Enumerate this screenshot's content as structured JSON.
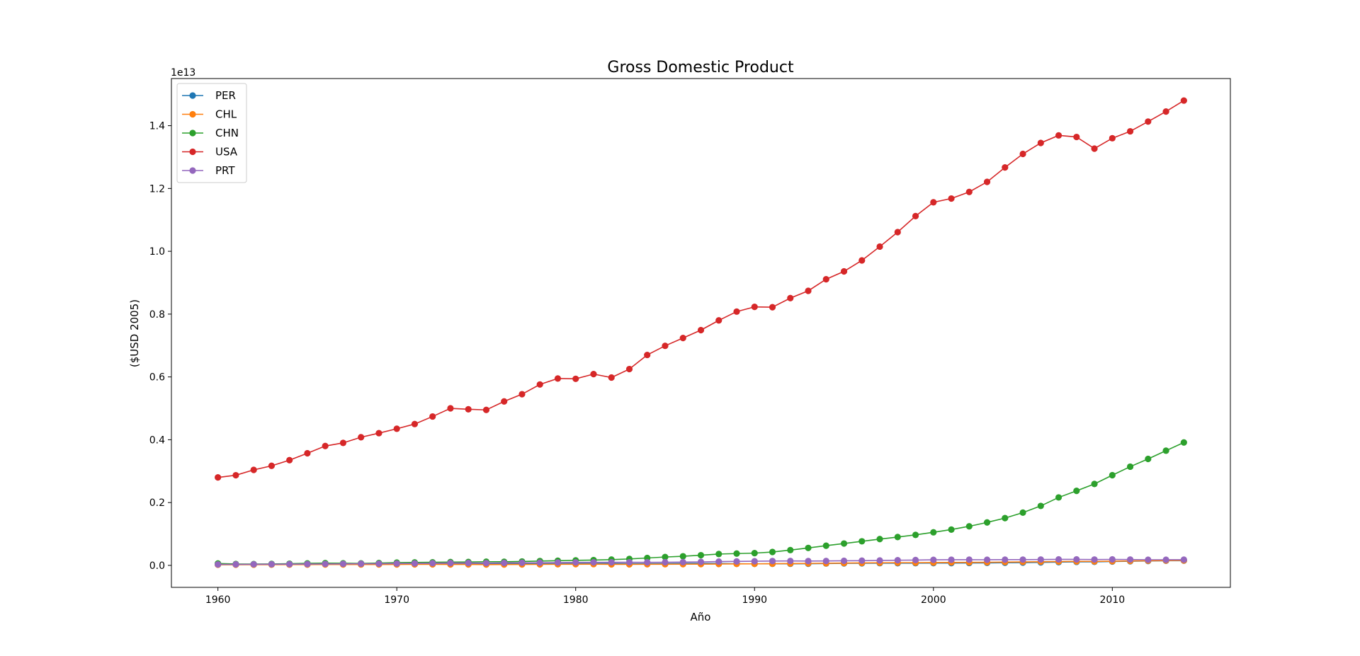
{
  "chart_data": {
    "type": "line",
    "title": "Gross Domestic Product",
    "xlabel": "Año",
    "ylabel": "($USD 2005)",
    "y_offset_label": "1e13",
    "xlim": [
      1957.4,
      2016.6
    ],
    "ylim": [
      -0.07,
      1.55
    ],
    "y_scale": 10000000000000.0,
    "xticks": [
      1960,
      1970,
      1980,
      1990,
      2000,
      2010
    ],
    "yticks": [
      0.0,
      0.2,
      0.4,
      0.6,
      0.8,
      1.0,
      1.2,
      1.4
    ],
    "ytick_labels": [
      "0.0",
      "0.2",
      "0.4",
      "0.6",
      "0.8",
      "1.0",
      "1.2",
      "1.4"
    ],
    "grid": false,
    "legend_position": "top-left",
    "marker": "circle",
    "x": [
      1960,
      1961,
      1962,
      1963,
      1964,
      1965,
      1966,
      1967,
      1968,
      1969,
      1970,
      1971,
      1972,
      1973,
      1974,
      1975,
      1976,
      1977,
      1978,
      1979,
      1980,
      1981,
      1982,
      1983,
      1984,
      1985,
      1986,
      1987,
      1988,
      1989,
      1990,
      1991,
      1992,
      1993,
      1994,
      1995,
      1996,
      1997,
      1998,
      1999,
      2000,
      2001,
      2002,
      2003,
      2004,
      2005,
      2006,
      2007,
      2008,
      2009,
      2010,
      2011,
      2012,
      2013,
      2014
    ],
    "series": [
      {
        "name": "PER",
        "color": "#1f77b4",
        "values": [
          0.0025,
          0.0026,
          0.0028,
          0.0029,
          0.0031,
          0.0032,
          0.0034,
          0.0036,
          0.0036,
          0.0037,
          0.0039,
          0.0041,
          0.0042,
          0.0045,
          0.0049,
          0.005,
          0.0051,
          0.0051,
          0.0051,
          0.0054,
          0.0057,
          0.006,
          0.006,
          0.0053,
          0.0055,
          0.0056,
          0.0061,
          0.0066,
          0.006,
          0.0052,
          0.0049,
          0.005,
          0.005,
          0.0052,
          0.0059,
          0.0064,
          0.0066,
          0.007,
          0.0069,
          0.007,
          0.0072,
          0.0072,
          0.0076,
          0.0079,
          0.0083,
          0.0088,
          0.0095,
          0.0103,
          0.0112,
          0.0113,
          0.0123,
          0.0131,
          0.0139,
          0.0147,
          0.015
        ]
      },
      {
        "name": "CHL",
        "color": "#ff7f0e",
        "values": [
          0.002,
          0.0021,
          0.0022,
          0.0023,
          0.0024,
          0.0024,
          0.0027,
          0.0027,
          0.0028,
          0.0029,
          0.003,
          0.0032,
          0.0032,
          0.003,
          0.003,
          0.0026,
          0.0027,
          0.003,
          0.0032,
          0.0035,
          0.0037,
          0.0039,
          0.0033,
          0.0033,
          0.0035,
          0.0036,
          0.0038,
          0.004,
          0.0043,
          0.0047,
          0.0049,
          0.0053,
          0.0059,
          0.0063,
          0.0067,
          0.0073,
          0.0078,
          0.0083,
          0.0086,
          0.0086,
          0.009,
          0.0093,
          0.0095,
          0.0099,
          0.0105,
          0.011,
          0.0116,
          0.0122,
          0.0126,
          0.0125,
          0.0132,
          0.014,
          0.0147,
          0.0153,
          0.0156
        ]
      },
      {
        "name": "CHN",
        "color": "#2ca02c",
        "values": [
          0.006,
          0.0044,
          0.0041,
          0.0046,
          0.0054,
          0.0064,
          0.0071,
          0.0067,
          0.0063,
          0.0074,
          0.0088,
          0.0094,
          0.0098,
          0.0105,
          0.0108,
          0.0117,
          0.0115,
          0.0124,
          0.0138,
          0.0149,
          0.016,
          0.0169,
          0.0184,
          0.0204,
          0.0235,
          0.0266,
          0.029,
          0.0324,
          0.0361,
          0.0376,
          0.039,
          0.0426,
          0.0487,
          0.0555,
          0.0627,
          0.0696,
          0.0766,
          0.0837,
          0.0902,
          0.0971,
          0.1053,
          0.114,
          0.1244,
          0.1368,
          0.1506,
          0.168,
          0.1893,
          0.2163,
          0.2372,
          0.2593,
          0.2871,
          0.3143,
          0.3389,
          0.3651,
          0.3914
        ]
      },
      {
        "name": "USA",
        "color": "#d62728",
        "values": [
          0.28,
          0.287,
          0.304,
          0.317,
          0.335,
          0.357,
          0.38,
          0.39,
          0.408,
          0.421,
          0.435,
          0.45,
          0.474,
          0.5,
          0.497,
          0.495,
          0.522,
          0.545,
          0.576,
          0.595,
          0.594,
          0.609,
          0.598,
          0.625,
          0.67,
          0.699,
          0.724,
          0.749,
          0.78,
          0.808,
          0.823,
          0.822,
          0.851,
          0.874,
          0.911,
          0.936,
          0.971,
          1.015,
          1.061,
          1.112,
          1.156,
          1.168,
          1.189,
          1.221,
          1.267,
          1.31,
          1.345,
          1.369,
          1.364,
          1.327,
          1.36,
          1.382,
          1.413,
          1.445,
          1.48
        ]
      },
      {
        "name": "PRT",
        "color": "#9467bd",
        "values": [
          0.003,
          0.0032,
          0.0034,
          0.0036,
          0.0039,
          0.0042,
          0.0045,
          0.0048,
          0.0052,
          0.0054,
          0.0059,
          0.0063,
          0.0068,
          0.0075,
          0.0076,
          0.0073,
          0.0078,
          0.0083,
          0.0086,
          0.0091,
          0.0095,
          0.0097,
          0.0099,
          0.0099,
          0.0097,
          0.01,
          0.0104,
          0.0111,
          0.012,
          0.0126,
          0.0132,
          0.0138,
          0.014,
          0.0137,
          0.014,
          0.0146,
          0.015,
          0.0157,
          0.0164,
          0.017,
          0.0177,
          0.018,
          0.0181,
          0.0179,
          0.0182,
          0.0183,
          0.0186,
          0.0191,
          0.0191,
          0.0186,
          0.019,
          0.0186,
          0.0179,
          0.0179,
          0.0181
        ]
      }
    ]
  }
}
